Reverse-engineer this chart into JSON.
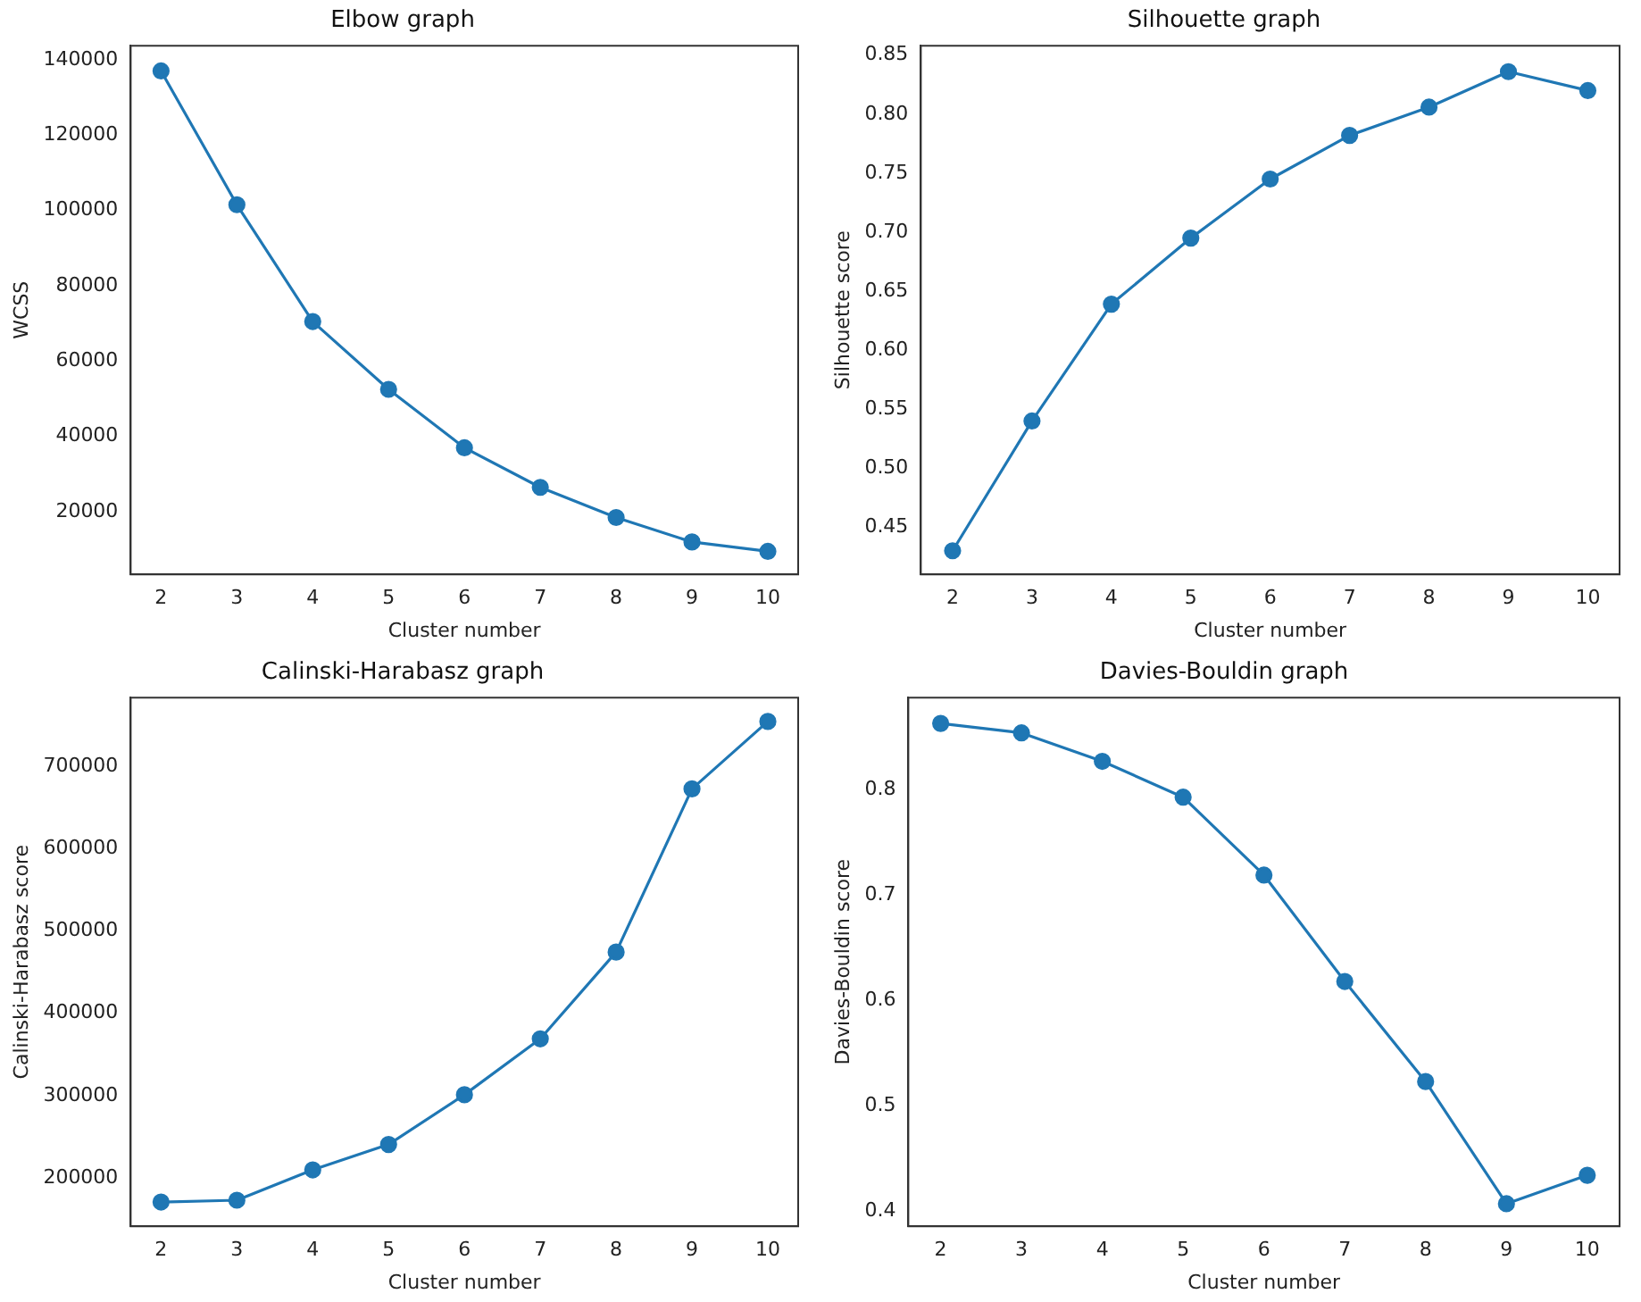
{
  "chart_data": [
    {
      "type": "line",
      "title": "Elbow graph",
      "xlabel": "Cluster number",
      "ylabel": "WCSS",
      "marker": "circle",
      "line_style": "solid",
      "x": [
        2,
        3,
        4,
        5,
        6,
        7,
        8,
        9,
        10
      ],
      "series": [
        {
          "color": "#1f77b4",
          "values": [
            137000,
            101500,
            70500,
            52500,
            37000,
            26500,
            18500,
            12000,
            9500
          ]
        }
      ],
      "xlim": [
        1.6,
        10.4
      ],
      "xticks": [
        2,
        3,
        4,
        5,
        6,
        7,
        8,
        9,
        10
      ],
      "ylim": [
        3400,
        143700
      ],
      "yticks": [
        20000,
        40000,
        60000,
        80000,
        100000,
        120000,
        140000
      ]
    },
    {
      "type": "line",
      "title": "Silhouette graph",
      "xlabel": "Cluster number",
      "ylabel": "Silhouette score",
      "marker": "circle",
      "line_style": "solid",
      "x": [
        2,
        3,
        4,
        5,
        6,
        7,
        8,
        9,
        10
      ],
      "series": [
        {
          "color": "#1f77b4",
          "values": [
            0.43,
            0.54,
            0.639,
            0.695,
            0.745,
            0.782,
            0.806,
            0.836,
            0.82
          ]
        }
      ],
      "xlim": [
        1.6,
        10.4
      ],
      "xticks": [
        2,
        3,
        4,
        5,
        6,
        7,
        8,
        9,
        10
      ],
      "ylim": [
        0.41,
        0.858
      ],
      "yticks": [
        0.45,
        {
          "value": 0.5,
          "label": "0.50"
        },
        0.55,
        {
          "value": 0.6,
          "label": "0.60"
        },
        0.65,
        {
          "value": 0.7,
          "label": "0.70"
        },
        0.75,
        {
          "value": 0.8,
          "label": "0.80"
        },
        0.85
      ]
    },
    {
      "type": "line",
      "title": "Calinski-Harabasz graph",
      "xlabel": "Cluster number",
      "ylabel": "Calinski-Harabasz score",
      "marker": "circle",
      "line_style": "solid",
      "x": [
        2,
        3,
        4,
        5,
        6,
        7,
        8,
        9,
        10
      ],
      "series": [
        {
          "color": "#1f77b4",
          "values": [
            170500,
            172700,
            209600,
            240500,
            301000,
            369000,
            474500,
            673000,
            755000
          ]
        }
      ],
      "xlim": [
        1.6,
        10.4
      ],
      "xticks": [
        2,
        3,
        4,
        5,
        6,
        7,
        8,
        9,
        10
      ],
      "ylim": [
        141000,
        784000
      ],
      "yticks": [
        200000,
        300000,
        400000,
        500000,
        600000,
        700000
      ]
    },
    {
      "type": "line",
      "title": "Davies-Bouldin graph",
      "xlabel": "Cluster number",
      "ylabel": "Davies-Bouldin score",
      "marker": "circle",
      "line_style": "solid",
      "x": [
        2,
        3,
        4,
        5,
        6,
        7,
        8,
        9,
        10
      ],
      "series": [
        {
          "color": "#1f77b4",
          "values": [
            0.863,
            0.854,
            0.827,
            0.793,
            0.719,
            0.618,
            0.523,
            0.407,
            0.434
          ]
        }
      ],
      "xlim": [
        1.6,
        10.4
      ],
      "xticks": [
        2,
        3,
        4,
        5,
        6,
        7,
        8,
        9,
        10
      ],
      "ylim": [
        0.3856,
        0.8875
      ],
      "yticks": [
        0.4,
        0.5,
        0.6,
        0.7,
        0.8
      ]
    }
  ]
}
